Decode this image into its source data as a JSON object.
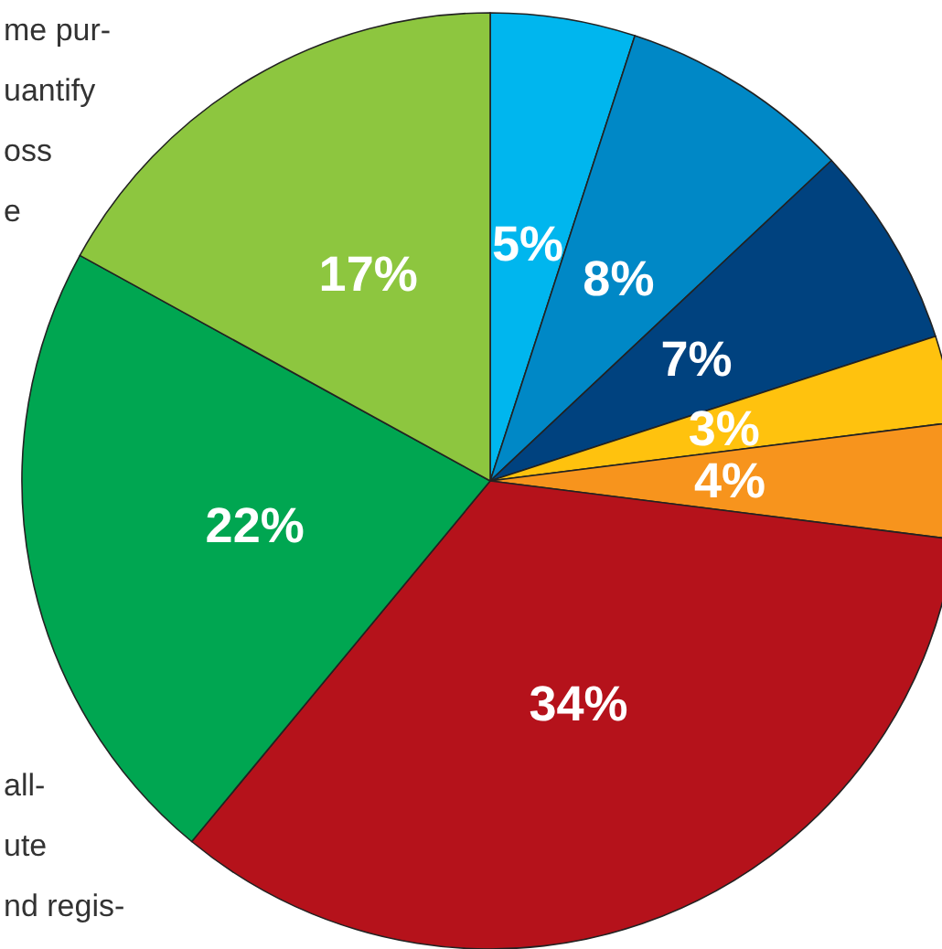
{
  "chart_data": {
    "type": "pie",
    "categories": [
      null,
      null,
      null,
      null,
      null,
      null,
      null,
      null
    ],
    "values": [
      5,
      8,
      7,
      3,
      4,
      34,
      22,
      17
    ],
    "colors": [
      "#00b6ee",
      "#0088c6",
      "#00427f",
      "#ffc20e",
      "#f7941d",
      "#b5121b",
      "#00a651",
      "#8dc63f"
    ],
    "value_labels": [
      "5%",
      "8%",
      "7%",
      "3%",
      "4%",
      "34%",
      "22%",
      "17%"
    ],
    "legend": false,
    "annotations": [
      "me pur-\nuantify\noss\ne",
      "all-\nute\nnd regis-"
    ]
  }
}
